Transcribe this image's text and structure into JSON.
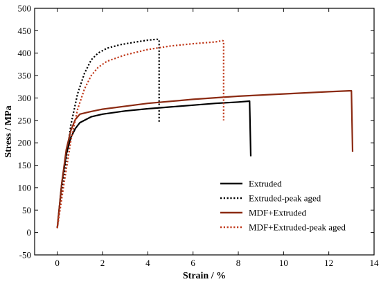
{
  "chart_data": {
    "type": "line",
    "title": "",
    "xlabel": "Strain / %",
    "ylabel": "Stress / MPa",
    "xlim": [
      -1,
      14
    ],
    "ylim": [
      -50,
      500
    ],
    "xticks": [
      0,
      2,
      4,
      6,
      8,
      10,
      12,
      14
    ],
    "yticks": [
      -50,
      0,
      50,
      100,
      150,
      200,
      250,
      300,
      350,
      400,
      450,
      500
    ],
    "grid": false,
    "legend_position": "bottom-right",
    "series": [
      {
        "name": "Extruded",
        "color": "#000000",
        "style": "solid",
        "points": [
          [
            0,
            10
          ],
          [
            0.2,
            110
          ],
          [
            0.4,
            175
          ],
          [
            0.6,
            212
          ],
          [
            0.8,
            232
          ],
          [
            1.0,
            245
          ],
          [
            1.5,
            258
          ],
          [
            2,
            264
          ],
          [
            3,
            271
          ],
          [
            4,
            276
          ],
          [
            5,
            280
          ],
          [
            6,
            284
          ],
          [
            7,
            288
          ],
          [
            8,
            291
          ],
          [
            8.5,
            293
          ],
          [
            8.55,
            170
          ]
        ]
      },
      {
        "name": "Extruded-peak aged",
        "color": "#000000",
        "style": "dotted",
        "points": [
          [
            0,
            10
          ],
          [
            0.3,
            130
          ],
          [
            0.6,
            240
          ],
          [
            0.9,
            310
          ],
          [
            1.2,
            355
          ],
          [
            1.5,
            385
          ],
          [
            1.8,
            400
          ],
          [
            2.2,
            411
          ],
          [
            2.8,
            419
          ],
          [
            3.5,
            425
          ],
          [
            4,
            429
          ],
          [
            4.4,
            431
          ],
          [
            4.5,
            430
          ],
          [
            4.5,
            245
          ]
        ]
      },
      {
        "name": "MDF+Extruded",
        "color": "#8b2a12",
        "style": "solid",
        "points": [
          [
            0,
            10
          ],
          [
            0.2,
            110
          ],
          [
            0.4,
            185
          ],
          [
            0.6,
            228
          ],
          [
            0.8,
            252
          ],
          [
            1.0,
            264
          ],
          [
            1.5,
            270
          ],
          [
            2,
            275
          ],
          [
            4,
            288
          ],
          [
            6,
            297
          ],
          [
            8,
            304
          ],
          [
            10,
            309
          ],
          [
            12,
            314
          ],
          [
            12.9,
            316
          ],
          [
            13.0,
            316
          ],
          [
            13.05,
            180
          ]
        ]
      },
      {
        "name": "MDF+Extruded-peak aged",
        "color": "#c0391b",
        "style": "dotted",
        "points": [
          [
            0,
            10
          ],
          [
            0.3,
            110
          ],
          [
            0.6,
            205
          ],
          [
            0.9,
            275
          ],
          [
            1.2,
            320
          ],
          [
            1.5,
            350
          ],
          [
            1.8,
            368
          ],
          [
            2.2,
            382
          ],
          [
            3,
            396
          ],
          [
            4,
            408
          ],
          [
            5,
            416
          ],
          [
            6,
            421
          ],
          [
            7,
            425
          ],
          [
            7.3,
            428
          ],
          [
            7.35,
            427
          ],
          [
            7.35,
            250
          ]
        ]
      }
    ]
  }
}
